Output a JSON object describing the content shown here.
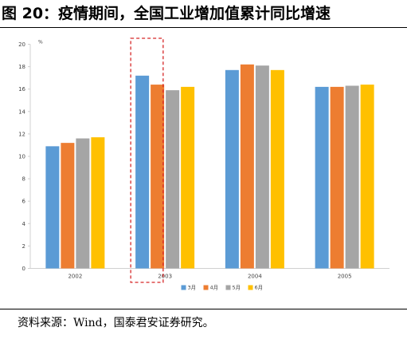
{
  "figure": {
    "title": "图 20：疫情期间，全国工业增加值累计同比增速",
    "source": "资料来源：Wind，国泰君安证券研究。"
  },
  "chart_data": {
    "type": "bar",
    "title": "",
    "ylabel": "%",
    "xlabel": "",
    "categories": [
      "2002",
      "2003",
      "2004",
      "2005"
    ],
    "ylim": [
      0,
      20
    ],
    "yticks": [
      0,
      2,
      4,
      6,
      8,
      10,
      12,
      14,
      16,
      18,
      20
    ],
    "grid": false,
    "legend_position": "bottom",
    "highlighted_category": "2003",
    "series": [
      {
        "name": "3月",
        "color": "#5B9BD5",
        "values": [
          10.9,
          17.2,
          17.7,
          16.2
        ]
      },
      {
        "name": "4月",
        "color": "#ED7D31",
        "values": [
          11.2,
          16.4,
          18.2,
          16.2
        ]
      },
      {
        "name": "5月",
        "color": "#A5A5A5",
        "values": [
          11.6,
          15.9,
          18.1,
          16.3
        ]
      },
      {
        "name": "6月",
        "color": "#FFC000",
        "values": [
          11.7,
          16.2,
          17.7,
          16.4
        ]
      }
    ]
  }
}
